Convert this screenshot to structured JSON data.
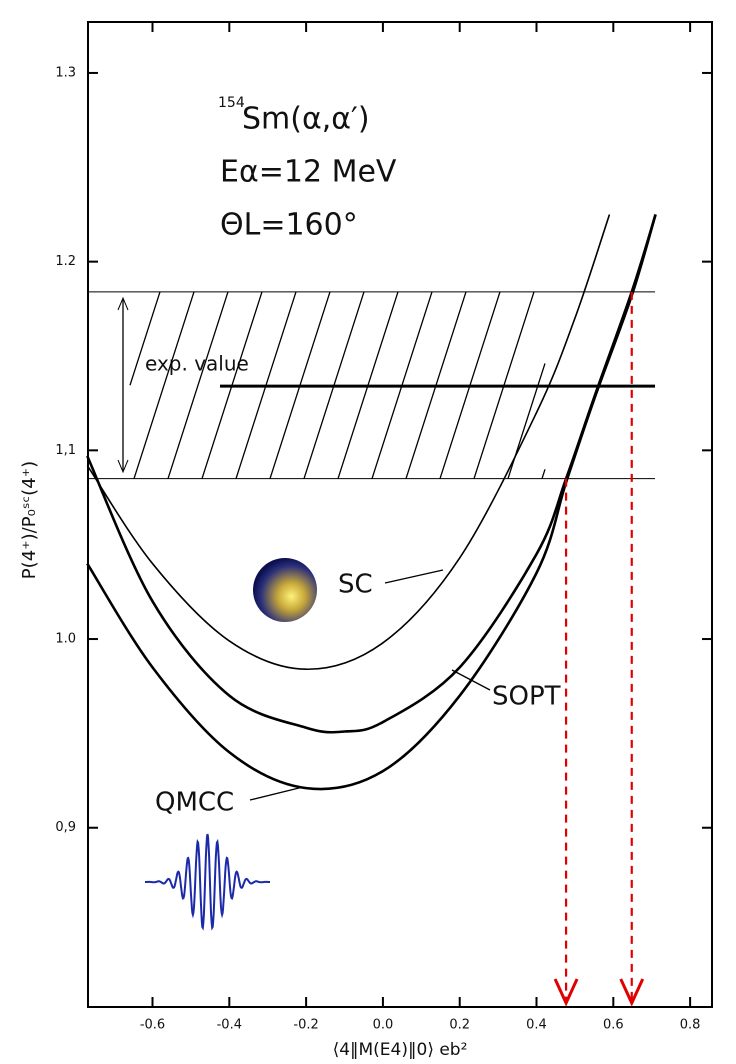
{
  "chart_data": {
    "type": "line",
    "annotations": [
      "154",
      "Sm(α,α′)",
      "Eα=12 MeV",
      "ΘL=160°",
      "exp. value"
    ],
    "x_label": "⟨4‖M(E4)‖0⟩ eb²",
    "y_label": "P(4⁺)/P₀ˢᶜ(4⁺)",
    "series": [
      {
        "name": "SC",
        "color": "#000000",
        "x": [
          -0.77,
          -0.6,
          -0.4,
          -0.2,
          0.0,
          0.2,
          0.4,
          0.5,
          0.59
        ],
        "values": [
          1.092,
          1.04,
          0.999,
          0.984,
          0.998,
          1.043,
          1.12,
          1.17,
          1.225
        ]
      },
      {
        "name": "SOPT",
        "color": "#000000",
        "x": [
          -0.77,
          -0.6,
          -0.4,
          -0.2,
          -0.1,
          0.0,
          0.2,
          0.4,
          0.477,
          0.55,
          0.648,
          0.71
        ],
        "values": [
          1.097,
          1.02,
          0.97,
          0.953,
          0.951,
          0.956,
          0.985,
          1.045,
          1.085,
          1.128,
          1.184,
          1.225
        ]
      },
      {
        "name": "QMCC",
        "color": "#000000",
        "x": [
          -0.77,
          -0.6,
          -0.4,
          -0.2,
          0.0,
          0.2,
          0.4,
          0.477,
          0.55,
          0.648,
          0.71
        ],
        "values": [
          1.04,
          0.985,
          0.94,
          0.921,
          0.93,
          0.97,
          1.035,
          1.083,
          1.127,
          1.182,
          1.225
        ]
      }
    ],
    "band": {
      "lower": 1.085,
      "center": 1.134,
      "upper": 1.184
    },
    "markers": [
      {
        "x": 0.477,
        "y": 1.085
      },
      {
        "x": 0.648,
        "y": 1.184
      }
    ],
    "marker_color": "#e00000",
    "xlim": [
      -0.768,
      0.857
    ],
    "ylim": [
      0.805,
      1.327
    ],
    "xticks": [
      -0.6,
      -0.4,
      -0.2,
      {
        "value": 0,
        "label": "0.0"
      },
      0.2,
      0.4,
      0.6,
      0.8
    ],
    "yticks": [
      {
        "value": 0.9,
        "label": "0,9"
      },
      {
        "value": 1,
        "label": "1.0"
      },
      {
        "value": 1.1,
        "label": "1,1"
      },
      1.2,
      1.3
    ]
  }
}
